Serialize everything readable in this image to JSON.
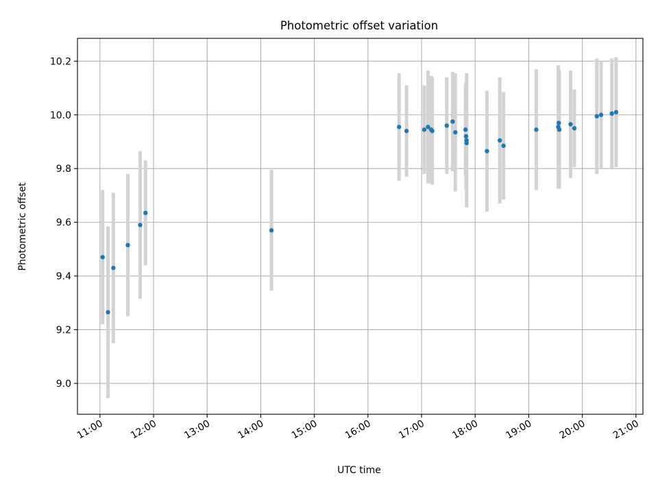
{
  "chart_data": {
    "type": "scatter",
    "title": "Photometric offset variation",
    "xlabel": "UTC time",
    "ylabel": "Photometric offset",
    "x_unit": "hours (UTC time of day)",
    "xlim": [
      10.58,
      21.13
    ],
    "ylim": [
      8.885,
      10.285
    ],
    "x_ticks": [
      {
        "value": 11,
        "label": "11:00"
      },
      {
        "value": 12,
        "label": "12:00"
      },
      {
        "value": 13,
        "label": "13:00"
      },
      {
        "value": 14,
        "label": "14:00"
      },
      {
        "value": 15,
        "label": "15:00"
      },
      {
        "value": 16,
        "label": "16:00"
      },
      {
        "value": 17,
        "label": "17:00"
      },
      {
        "value": 18,
        "label": "18:00"
      },
      {
        "value": 19,
        "label": "19:00"
      },
      {
        "value": 20,
        "label": "20:00"
      },
      {
        "value": 21,
        "label": "21:00"
      }
    ],
    "y_ticks": [
      {
        "value": 9.0,
        "label": "9.0"
      },
      {
        "value": 9.2,
        "label": "9.2"
      },
      {
        "value": 9.4,
        "label": "9.4"
      },
      {
        "value": 9.6,
        "label": "9.6"
      },
      {
        "value": 9.8,
        "label": "9.8"
      },
      {
        "value": 10.0,
        "label": "10.0"
      },
      {
        "value": 10.2,
        "label": "10.2"
      }
    ],
    "grid": true,
    "colors": {
      "point": "#1f77b4",
      "errorbar": "#d3d3d3"
    },
    "points": [
      {
        "x": 11.05,
        "y": 9.47,
        "err": 0.25
      },
      {
        "x": 11.15,
        "y": 9.265,
        "err": 0.32
      },
      {
        "x": 11.25,
        "y": 9.43,
        "err": 0.28
      },
      {
        "x": 11.52,
        "y": 9.515,
        "err": 0.265
      },
      {
        "x": 11.75,
        "y": 9.59,
        "err": 0.275
      },
      {
        "x": 11.85,
        "y": 9.635,
        "err": 0.195
      },
      {
        "x": 14.2,
        "y": 9.57,
        "err": 0.225
      },
      {
        "x": 16.58,
        "y": 9.955,
        "err": 0.2
      },
      {
        "x": 16.72,
        "y": 9.94,
        "err": 0.17
      },
      {
        "x": 17.05,
        "y": 9.945,
        "err": 0.165
      },
      {
        "x": 17.12,
        "y": 9.955,
        "err": 0.21
      },
      {
        "x": 17.18,
        "y": 9.945,
        "err": 0.2
      },
      {
        "x": 17.2,
        "y": 9.94,
        "err": 0.2
      },
      {
        "x": 17.47,
        "y": 9.96,
        "err": 0.18
      },
      {
        "x": 17.58,
        "y": 9.975,
        "err": 0.185
      },
      {
        "x": 17.63,
        "y": 9.935,
        "err": 0.22
      },
      {
        "x": 17.82,
        "y": 9.945,
        "err": 0.17
      },
      {
        "x": 17.83,
        "y": 9.92,
        "err": 0.2
      },
      {
        "x": 17.84,
        "y": 9.905,
        "err": 0.25
      },
      {
        "x": 17.84,
        "y": 9.895,
        "err": 0.22
      },
      {
        "x": 18.22,
        "y": 9.865,
        "err": 0.225
      },
      {
        "x": 18.46,
        "y": 9.905,
        "err": 0.235
      },
      {
        "x": 18.53,
        "y": 9.885,
        "err": 0.2
      },
      {
        "x": 19.14,
        "y": 9.945,
        "err": 0.225
      },
      {
        "x": 19.55,
        "y": 9.955,
        "err": 0.23
      },
      {
        "x": 19.56,
        "y": 9.97,
        "err": 0.2
      },
      {
        "x": 19.57,
        "y": 9.945,
        "err": 0.22
      },
      {
        "x": 19.78,
        "y": 9.965,
        "err": 0.2
      },
      {
        "x": 19.85,
        "y": 9.95,
        "err": 0.145
      },
      {
        "x": 20.27,
        "y": 9.995,
        "err": 0.215
      },
      {
        "x": 20.35,
        "y": 10.0,
        "err": 0.2
      },
      {
        "x": 20.55,
        "y": 10.005,
        "err": 0.205
      },
      {
        "x": 20.63,
        "y": 10.01,
        "err": 0.205
      }
    ]
  }
}
